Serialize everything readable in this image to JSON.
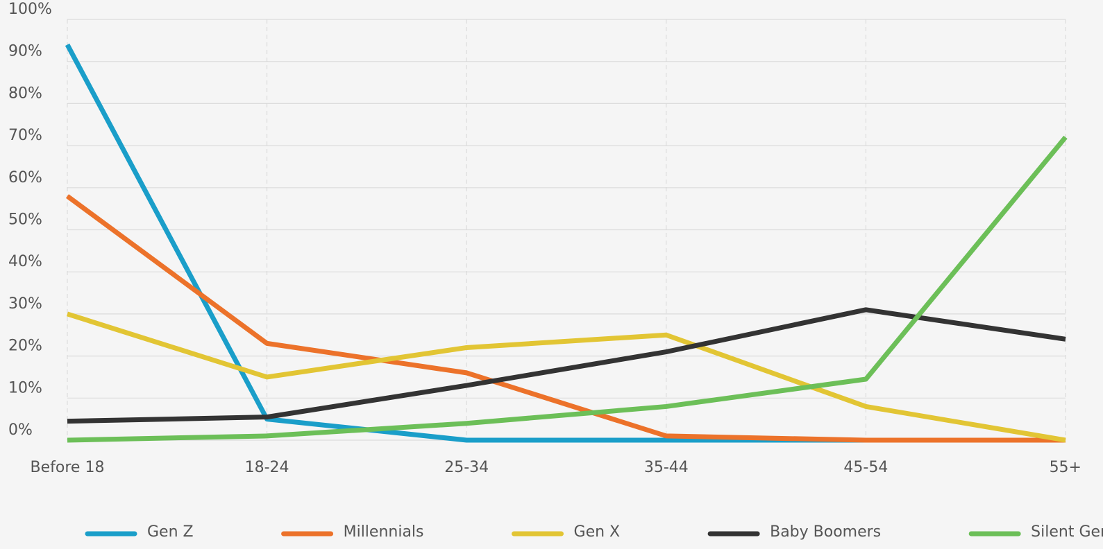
{
  "chart_data": {
    "type": "line",
    "categories": [
      "Before 18",
      "18-24",
      "25-34",
      "35-44",
      "45-54",
      "55+"
    ],
    "series": [
      {
        "name": "Gen Z",
        "color": "#1a9ec9",
        "values": [
          94,
          5,
          0,
          0,
          0,
          0
        ]
      },
      {
        "name": "Millennials",
        "color": "#ec722a",
        "values": [
          58,
          23,
          16,
          1,
          0,
          0
        ]
      },
      {
        "name": "Gen X",
        "color": "#e2c534",
        "values": [
          30,
          15,
          22,
          25,
          8,
          0
        ]
      },
      {
        "name": "Baby Boomers",
        "color": "#333333",
        "values": [
          4.5,
          5.5,
          13,
          21,
          31,
          24
        ]
      },
      {
        "name": "Silent Generation",
        "color": "#6cbf58",
        "values": [
          0,
          1,
          4,
          8,
          14.5,
          72
        ]
      }
    ],
    "ylim": [
      0,
      100
    ],
    "yticks": [
      {
        "value": 0,
        "label": "0%"
      },
      {
        "value": 10,
        "label": "10%"
      },
      {
        "value": 20,
        "label": "20%"
      },
      {
        "value": 30,
        "label": "30%"
      },
      {
        "value": 40,
        "label": "40%"
      },
      {
        "value": 50,
        "label": "50%"
      },
      {
        "value": 60,
        "label": "60%"
      },
      {
        "value": 70,
        "label": "70%"
      },
      {
        "value": 80,
        "label": "80%"
      },
      {
        "value": 90,
        "label": "90%"
      },
      {
        "value": 100,
        "label": "100%"
      }
    ],
    "grid": true,
    "legend": "bottom"
  }
}
